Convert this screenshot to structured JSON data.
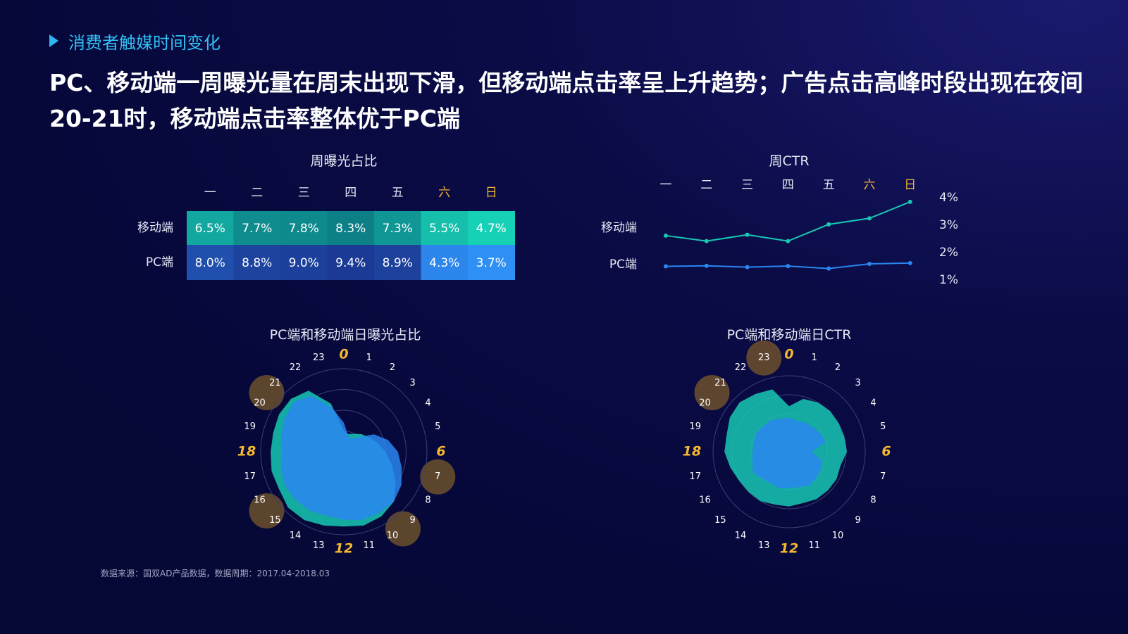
{
  "section": {
    "label": "消费者触媒时间变化"
  },
  "headline": "PC、移动端一周曝光量在周末出现下滑，但移动端点击率呈上升趋势；广告点击高峰时段出现在夜间20-21时，移动端点击率整体优于PC端",
  "footnote": "数据来源：国双AD产品数据，数据周期：2017.04-2018.03",
  "colors": {
    "accent": "#33bff4",
    "weekend": "#f5b82e",
    "mobile": "#18c8b4",
    "pc": "#2a86f0",
    "highlight": "#7a5a2a"
  },
  "chart_data": [
    {
      "type": "heatmap",
      "title": "周曝光占比",
      "columns": [
        "一",
        "二",
        "三",
        "四",
        "五",
        "六",
        "日"
      ],
      "weekend_columns": [
        "六",
        "日"
      ],
      "rows": [
        {
          "name": "移动端",
          "values": [
            "6.5%",
            "7.7%",
            "7.8%",
            "8.3%",
            "7.3%",
            "5.5%",
            "4.7%"
          ]
        },
        {
          "name": "PC端",
          "values": [
            "8.0%",
            "8.8%",
            "9.0%",
            "9.4%",
            "8.9%",
            "4.3%",
            "3.7%"
          ]
        }
      ]
    },
    {
      "type": "line",
      "title": "周CTR",
      "categories": [
        "一",
        "二",
        "三",
        "四",
        "五",
        "六",
        "日"
      ],
      "weekend_categories": [
        "六",
        "日"
      ],
      "ylim": [
        1,
        4
      ],
      "y_ticks": [
        "4%",
        "3%",
        "2%",
        "1%"
      ],
      "series": [
        {
          "name": "移动端",
          "values": [
            2.62,
            2.42,
            2.65,
            2.42,
            3.03,
            3.25,
            3.85
          ]
        },
        {
          "name": "PC端",
          "values": [
            1.5,
            1.52,
            1.47,
            1.51,
            1.42,
            1.59,
            1.62
          ]
        }
      ]
    },
    {
      "type": "radar",
      "title": "PC端和移动端日曝光占比",
      "hours": [
        "0",
        "1",
        "2",
        "3",
        "4",
        "5",
        "6",
        "7",
        "8",
        "9",
        "10",
        "11",
        "12",
        "13",
        "14",
        "15",
        "16",
        "17",
        "18",
        "19",
        "20",
        "21",
        "22",
        "23"
      ],
      "major_hours": [
        "0",
        "6",
        "12",
        "18"
      ],
      "highlight_hours": [
        "7",
        "9",
        "10",
        "15",
        "16",
        "20",
        "21"
      ],
      "rmax": 1,
      "series": [
        {
          "name": "移动端",
          "values": [
            0.25,
            0.22,
            0.25,
            0.3,
            0.35,
            0.42,
            0.5,
            0.6,
            0.72,
            0.85,
            0.9,
            0.92,
            0.9,
            0.92,
            0.95,
            0.95,
            0.9,
            0.9,
            0.88,
            0.88,
            0.9,
            0.9,
            0.85,
            0.6
          ]
        },
        {
          "name": "PC端",
          "values": [
            0.35,
            0.2,
            0.18,
            0.25,
            0.42,
            0.55,
            0.65,
            0.72,
            0.8,
            0.85,
            0.85,
            0.85,
            0.82,
            0.8,
            0.82,
            0.82,
            0.82,
            0.78,
            0.75,
            0.78,
            0.82,
            0.85,
            0.78,
            0.55
          ]
        }
      ]
    },
    {
      "type": "radar",
      "title": "PC端和移动端日CTR",
      "hours": [
        "0",
        "1",
        "2",
        "3",
        "4",
        "5",
        "6",
        "7",
        "8",
        "9",
        "10",
        "11",
        "12",
        "13",
        "14",
        "15",
        "16",
        "17",
        "18",
        "19",
        "20",
        "21",
        "22",
        "23"
      ],
      "major_hours": [
        "0",
        "6",
        "12",
        "18"
      ],
      "highlight_hours": [
        "20",
        "21",
        "23"
      ],
      "rmax": 1,
      "series": [
        {
          "name": "移动端",
          "values": [
            0.6,
            0.72,
            0.75,
            0.76,
            0.75,
            0.75,
            0.76,
            0.7,
            0.72,
            0.72,
            0.72,
            0.7,
            0.72,
            0.72,
            0.75,
            0.75,
            0.76,
            0.8,
            0.85,
            0.85,
            0.9,
            0.92,
            0.88,
            0.85
          ]
        },
        {
          "name": "PC端",
          "values": [
            0.45,
            0.42,
            0.44,
            0.45,
            0.48,
            0.5,
            0.3,
            0.45,
            0.48,
            0.5,
            0.52,
            0.48,
            0.48,
            0.5,
            0.48,
            0.5,
            0.55,
            0.5,
            0.48,
            0.48,
            0.5,
            0.48,
            0.48,
            0.45
          ]
        }
      ]
    }
  ]
}
